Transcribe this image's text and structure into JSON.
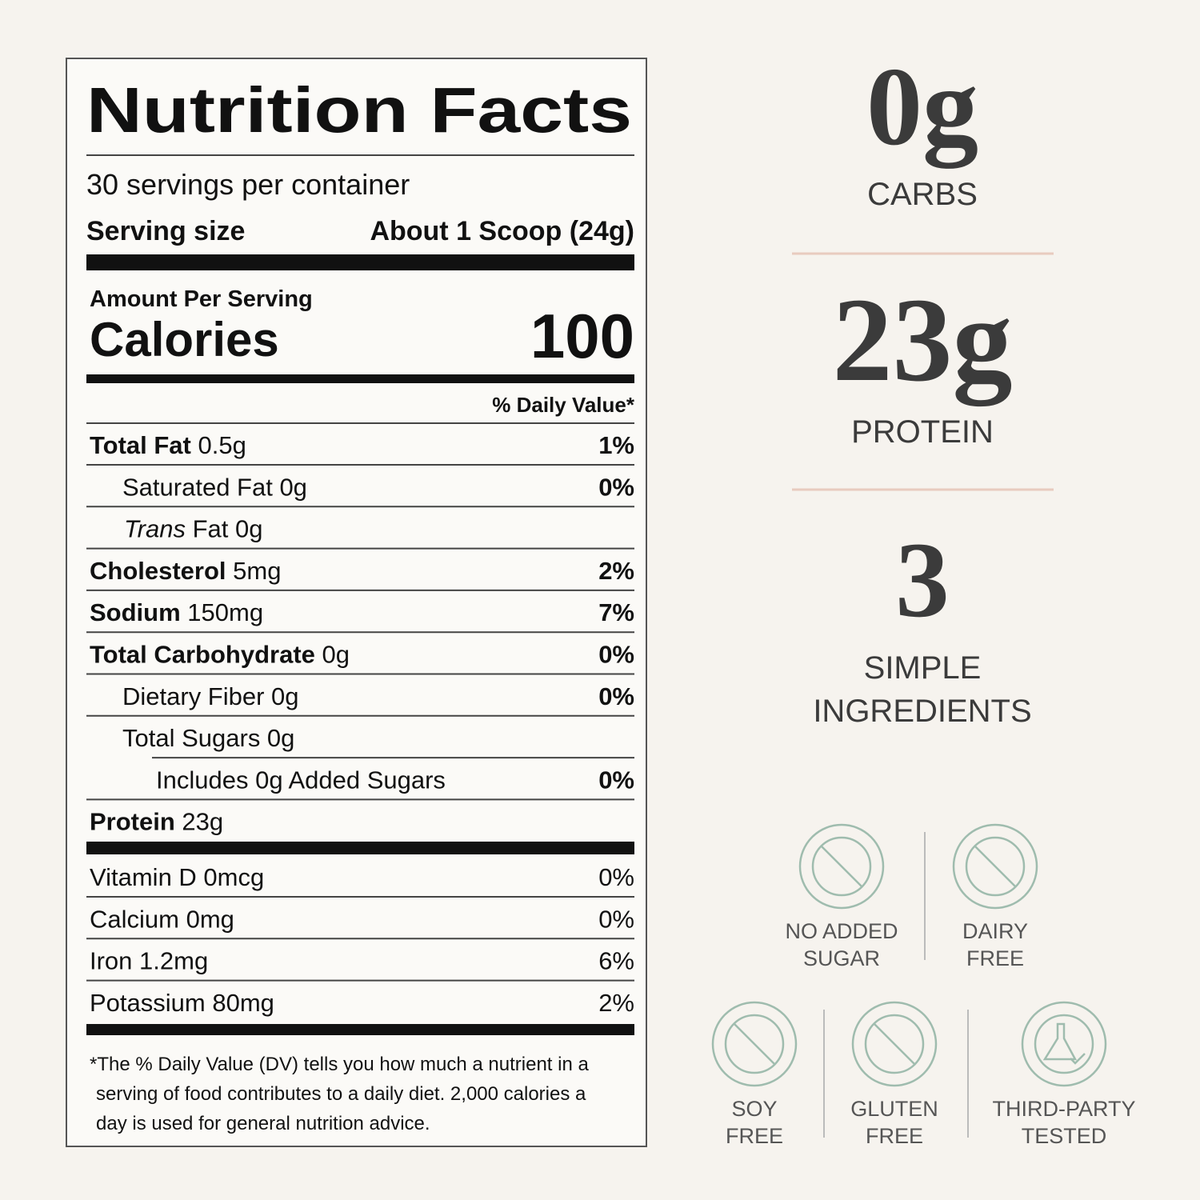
{
  "label": {
    "title": "Nutrition Facts",
    "servings": "30 servings per container",
    "serving_size_label": "Serving size",
    "serving_size_value": "About 1 Scoop (24g)",
    "amount_per_serving": "Amount Per Serving",
    "calories_label": "Calories",
    "calories_value": "100",
    "daily_value_header": "% Daily Value*",
    "rows": [
      {
        "name": "Total Fat",
        "amount": "0.5g",
        "dv": "1%"
      },
      {
        "name": "Saturated Fat 0g",
        "dv": "0%"
      },
      {
        "name_italic": "Trans",
        "name": "Fat 0g"
      },
      {
        "name": "Cholesterol",
        "amount": "5mg",
        "dv": "2%"
      },
      {
        "name": "Sodium",
        "amount": "150mg",
        "dv": "7%"
      },
      {
        "name": "Total Carbohydrate",
        "amount": "0g",
        "dv": "0%"
      },
      {
        "name": "Dietary Fiber 0g",
        "dv": "0%"
      },
      {
        "name": "Total Sugars 0g"
      },
      {
        "name": "Includes 0g Added Sugars",
        "dv": "0%"
      },
      {
        "name": "Protein",
        "amount": "23g"
      }
    ],
    "vitamins": [
      {
        "name": "Vitamin D 0mcg",
        "dv": "0%"
      },
      {
        "name": "Calcium 0mg",
        "dv": "0%"
      },
      {
        "name": "Iron 1.2mg",
        "dv": "6%"
      },
      {
        "name": "Potassium 80mg",
        "dv": "2%"
      }
    ],
    "footnote": [
      "*The % Daily Value (DV) tells you how much a nutrient in a",
      "serving of food contributes to a daily diet. 2,000 calories a",
      "day is used for general nutrition advice."
    ]
  },
  "stats": [
    {
      "value": "0g",
      "label": [
        "CARBS"
      ]
    },
    {
      "value": "23g",
      "label": [
        "PROTEIN"
      ]
    },
    {
      "value": "3",
      "label": [
        "SIMPLE",
        "INGREDIENTS"
      ]
    }
  ],
  "badges": [
    {
      "label": [
        "NO ADDED",
        "SUGAR"
      ]
    },
    {
      "label": [
        "DAIRY",
        "FREE"
      ]
    },
    {
      "label": [
        "SOY",
        "FREE"
      ]
    },
    {
      "label": [
        "GLUTEN",
        "FREE"
      ]
    },
    {
      "label": [
        "THIRD-PARTY",
        "TESTED"
      ]
    }
  ]
}
